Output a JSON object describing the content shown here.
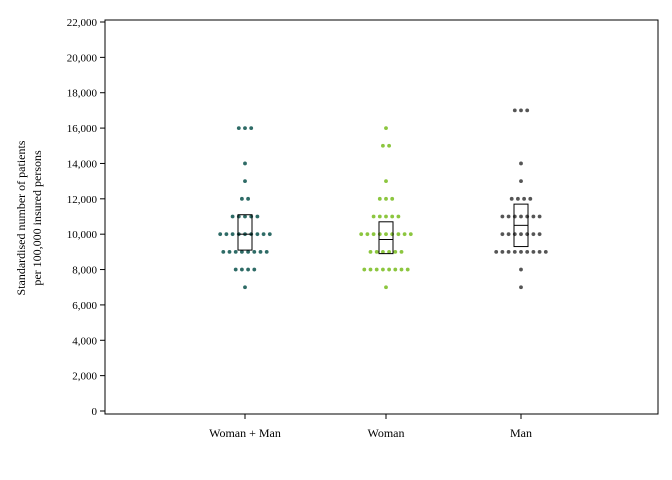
{
  "chart_data": {
    "type": "scatter",
    "subtype": "dot-strip with box (median and interquartile range)",
    "title": "",
    "xlabel": "",
    "ylabel_lines": [
      "Standardised number of patients",
      "per 100,000 insured persons"
    ],
    "ylim": [
      0,
      22000
    ],
    "yticks": [
      0,
      2000,
      4000,
      6000,
      8000,
      10000,
      12000,
      14000,
      16000,
      18000,
      20000,
      22000
    ],
    "ytick_labels": [
      "0",
      "2,000",
      "4,000",
      "6,000",
      "8,000",
      "10,000",
      "12,000",
      "14,000",
      "16,000",
      "18,000",
      "20,000",
      "22,000"
    ],
    "grid": false,
    "legend": "none",
    "categories": [
      "Woman + Man",
      "Woman",
      "Man"
    ],
    "series": [
      {
        "color": "#2e6b66",
        "points": [
          {
            "y": 16000,
            "count": 3
          },
          {
            "y": 14000,
            "count": 1
          },
          {
            "y": 13000,
            "count": 1
          },
          {
            "y": 12000,
            "count": 2
          },
          {
            "y": 11000,
            "count": 5
          },
          {
            "y": 10000,
            "count": 9
          },
          {
            "y": 9000,
            "count": 8
          },
          {
            "y": 8000,
            "count": 4
          },
          {
            "y": 7000,
            "count": 1
          }
        ],
        "box": {
          "q1": 9100,
          "median": 10000,
          "q3": 11100
        }
      },
      {
        "color": "#8cc63f",
        "points": [
          {
            "y": 16000,
            "count": 1
          },
          {
            "y": 15000,
            "count": 2
          },
          {
            "y": 13000,
            "count": 1
          },
          {
            "y": 12000,
            "count": 3
          },
          {
            "y": 11000,
            "count": 5
          },
          {
            "y": 10000,
            "count": 9
          },
          {
            "y": 9000,
            "count": 6
          },
          {
            "y": 8000,
            "count": 8
          },
          {
            "y": 7000,
            "count": 1
          }
        ],
        "box": {
          "q1": 8900,
          "median": 9700,
          "q3": 10700
        }
      },
      {
        "color": "#555555",
        "points": [
          {
            "y": 17000,
            "count": 3
          },
          {
            "y": 14000,
            "count": 1
          },
          {
            "y": 13000,
            "count": 1
          },
          {
            "y": 12000,
            "count": 4
          },
          {
            "y": 11000,
            "count": 7
          },
          {
            "y": 10000,
            "count": 7
          },
          {
            "y": 9000,
            "count": 9
          },
          {
            "y": 8000,
            "count": 1
          },
          {
            "y": 7000,
            "count": 1
          }
        ],
        "box": {
          "q1": 9300,
          "median": 10500,
          "q3": 11700
        }
      }
    ]
  }
}
